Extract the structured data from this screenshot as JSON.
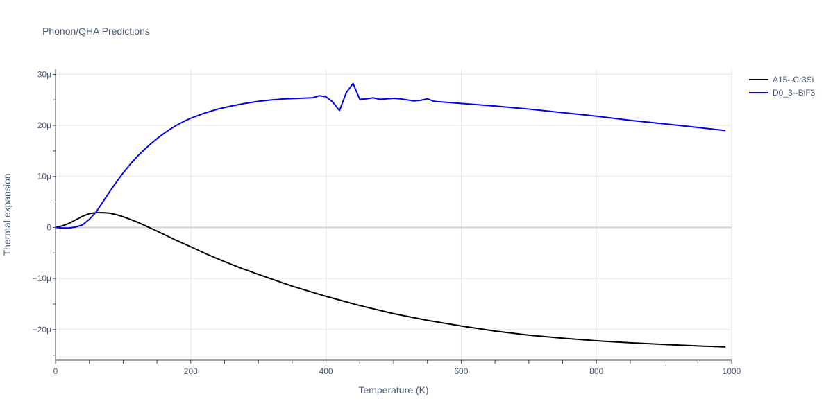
{
  "chart_data": {
    "type": "line",
    "title": "Phonon/QHA Predictions",
    "xlabel": "Temperature (K)",
    "ylabel": "Thermal expansion",
    "xlim": [
      0,
      1000
    ],
    "ylim": [
      -26,
      31
    ],
    "y_unit": "1e-6 (μ)",
    "x_ticks": [
      0,
      200,
      400,
      600,
      800,
      1000
    ],
    "x_tick_labels": [
      "0",
      "200",
      "400",
      "600",
      "800",
      "1000"
    ],
    "y_ticks": [
      -20,
      -10,
      0,
      10,
      20,
      30
    ],
    "y_tick_labels": [
      "−20μ",
      "−10μ",
      "0",
      "10μ",
      "20μ",
      "30μ"
    ],
    "grid": true,
    "legend_position": "top-right",
    "series": [
      {
        "name": "A15--Cr3Si",
        "color": "#000000",
        "x": [
          0,
          10,
          20,
          30,
          40,
          50,
          60,
          70,
          80,
          90,
          100,
          110,
          120,
          130,
          140,
          150,
          175,
          200,
          225,
          250,
          275,
          300,
          350,
          400,
          450,
          500,
          550,
          600,
          650,
          700,
          750,
          800,
          850,
          900,
          950,
          990
        ],
        "y": [
          0,
          0.3,
          0.8,
          1.5,
          2.2,
          2.7,
          2.9,
          2.9,
          2.8,
          2.5,
          2.1,
          1.6,
          1.1,
          0.5,
          -0.1,
          -0.7,
          -2.3,
          -3.8,
          -5.3,
          -6.7,
          -8.0,
          -9.2,
          -11.5,
          -13.5,
          -15.3,
          -16.9,
          -18.2,
          -19.3,
          -20.3,
          -21.1,
          -21.7,
          -22.2,
          -22.6,
          -22.9,
          -23.2,
          -23.4
        ]
      },
      {
        "name": "D0_3--BiF3",
        "color": "#0000ee",
        "x": [
          0,
          10,
          20,
          30,
          40,
          50,
          60,
          70,
          80,
          90,
          100,
          110,
          120,
          130,
          140,
          150,
          160,
          170,
          180,
          190,
          200,
          220,
          240,
          260,
          280,
          300,
          320,
          340,
          360,
          380,
          390,
          400,
          410,
          420,
          430,
          440,
          450,
          460,
          470,
          480,
          490,
          500,
          510,
          520,
          530,
          540,
          550,
          560,
          600,
          650,
          700,
          750,
          800,
          850,
          900,
          950,
          990
        ],
        "y": [
          0,
          -0.1,
          -0.1,
          0.1,
          0.5,
          1.6,
          3.0,
          5.0,
          7.0,
          8.9,
          10.7,
          12.3,
          13.8,
          15.1,
          16.3,
          17.4,
          18.4,
          19.3,
          20.1,
          20.8,
          21.4,
          22.4,
          23.2,
          23.8,
          24.3,
          24.7,
          25.0,
          25.2,
          25.3,
          25.4,
          25.8,
          25.6,
          24.6,
          22.9,
          26.4,
          28.2,
          25.1,
          25.2,
          25.4,
          25.1,
          25.2,
          25.3,
          25.2,
          25.0,
          24.8,
          24.9,
          25.2,
          24.7,
          24.3,
          23.8,
          23.2,
          22.5,
          21.8,
          21.0,
          20.3,
          19.6,
          19.0
        ]
      }
    ]
  }
}
